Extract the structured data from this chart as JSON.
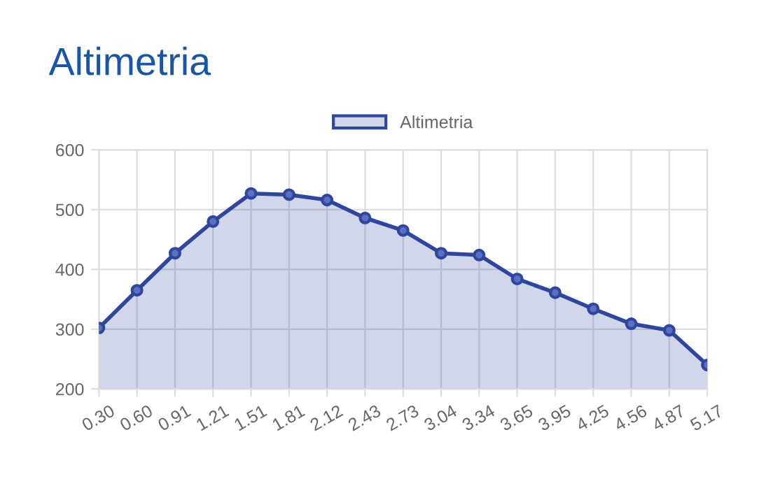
{
  "chart_data": {
    "type": "area",
    "title": "Altimetria",
    "categories": [
      "0.30",
      "0.60",
      "0.91",
      "1.21",
      "1.51",
      "1.81",
      "2.12",
      "2.43",
      "2.73",
      "3.04",
      "3.34",
      "3.65",
      "3.95",
      "4.25",
      "4.56",
      "4.87",
      "5.17"
    ],
    "series": [
      {
        "name": "Altimetria",
        "color": "#2e46a0",
        "values": [
          302,
          365,
          427,
          480,
          527,
          525,
          516,
          486,
          465,
          427,
          424,
          384,
          361,
          334,
          309,
          298,
          240
        ]
      }
    ],
    "ylim": [
      200,
      600
    ],
    "yticks": [
      200,
      300,
      400,
      500,
      600
    ],
    "grid": true,
    "legend": "top",
    "marker": "circle",
    "line_style": "solid"
  }
}
